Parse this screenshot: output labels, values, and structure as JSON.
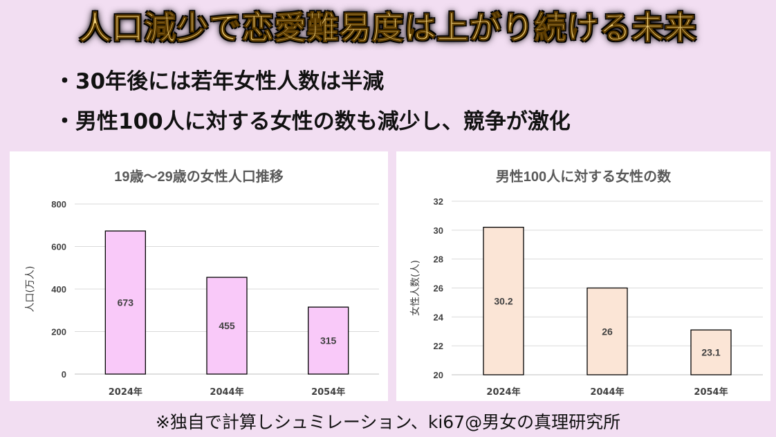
{
  "title": "人口減少で恋愛難易度は上がり続ける未来",
  "bullets": [
    "・30年後には若年女性人数は半減",
    "・男性100人に対する女性の数も減少し、競争が激化"
  ],
  "footnote": "※独自で計算しシュミレーション、ki67@男女の真理研究所",
  "chart_data": [
    {
      "type": "bar",
      "title": "19歳～29歳の女性人口推移",
      "ylabel": "人口(万人)",
      "xlabel": "",
      "categories": [
        "2024年",
        "2044年",
        "2054年"
      ],
      "values": [
        673,
        455,
        315
      ],
      "ylim": [
        0,
        800
      ],
      "yticks": [
        0,
        200,
        400,
        600,
        800
      ],
      "grid": true,
      "bar_color": "#f9c9f9",
      "data_labels": [
        "673",
        "455",
        "315"
      ]
    },
    {
      "type": "bar",
      "title": "男性100人に対する女性の数",
      "ylabel": "女性人数(人)",
      "xlabel": "",
      "categories": [
        "2024年",
        "2044年",
        "2054年"
      ],
      "values": [
        30.2,
        26,
        23.1
      ],
      "ylim": [
        20,
        32
      ],
      "yticks": [
        20,
        22,
        24,
        26,
        28,
        30,
        32
      ],
      "grid": true,
      "bar_color": "#fbe5d6",
      "data_labels": [
        "30.2",
        "26",
        "23.1"
      ]
    }
  ]
}
